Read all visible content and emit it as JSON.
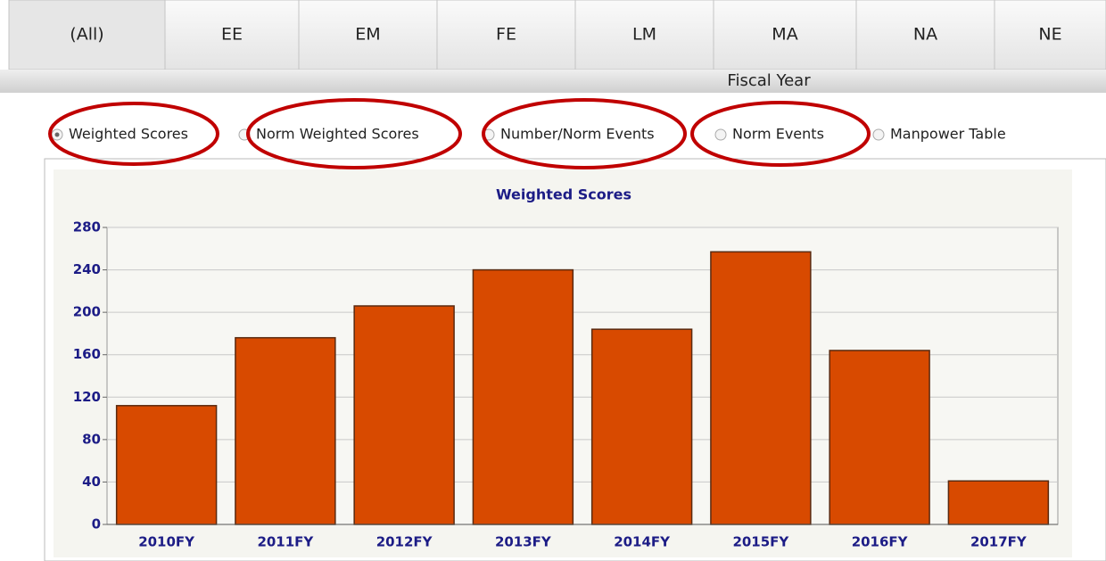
{
  "tabs": [
    "(All)",
    "EE",
    "EM",
    "FE",
    "LM",
    "MA",
    "NA",
    "NE"
  ],
  "header": "Fiscal Year",
  "options": [
    "Weighted Scores",
    "Norm Weighted Scores",
    "Number/Norm Events",
    "Norm Events",
    "Manpower Table"
  ],
  "chart_data": {
    "type": "bar",
    "title": "Weighted Scores",
    "categories": [
      "2010FY",
      "2011FY",
      "2012FY",
      "2013FY",
      "2014FY",
      "2015FY",
      "2016FY",
      "2017FY"
    ],
    "values": [
      112,
      176,
      206,
      240,
      184,
      257,
      164,
      41
    ],
    "color": "#d84a00",
    "ylim": [
      0,
      280
    ],
    "yticks": [
      0,
      40,
      80,
      120,
      160,
      200,
      240,
      280
    ],
    "grid": true
  }
}
